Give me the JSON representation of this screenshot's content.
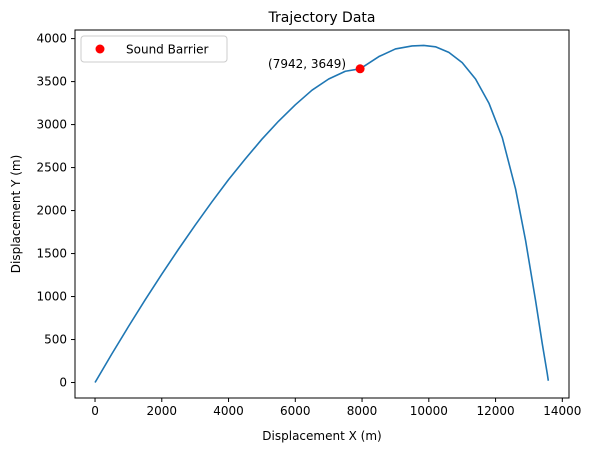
{
  "chart_data": {
    "type": "line",
    "title": "Trajectory Data",
    "xlabel": "Displacement X (m)",
    "ylabel": "Displacement Y (m)",
    "xlim": [
      -600,
      14200
    ],
    "ylim": [
      -180,
      4100
    ],
    "xticks": [
      0,
      2000,
      4000,
      6000,
      8000,
      10000,
      12000,
      14000
    ],
    "yticks": [
      0,
      500,
      1000,
      1500,
      2000,
      2500,
      3000,
      3500,
      4000
    ],
    "grid": false,
    "legend_position": "upper-left",
    "series": [
      {
        "color": "#1f77b4",
        "x": [
          0,
          500,
          1000,
          1500,
          2000,
          2500,
          3000,
          3500,
          4000,
          4500,
          5000,
          5500,
          6000,
          6500,
          7000,
          7500,
          7942,
          8500,
          9000,
          9500,
          9850,
          10200,
          10600,
          11000,
          11400,
          11800,
          12200,
          12600,
          12900,
          13200,
          13400,
          13550,
          13580
        ],
        "y": [
          0,
          330,
          650,
          960,
          1260,
          1550,
          1830,
          2100,
          2360,
          2600,
          2830,
          3040,
          3230,
          3400,
          3530,
          3620,
          3649,
          3790,
          3880,
          3915,
          3920,
          3905,
          3840,
          3720,
          3530,
          3250,
          2850,
          2250,
          1650,
          950,
          450,
          100,
          20
        ]
      }
    ],
    "points": [
      {
        "name": "Sound Barrier",
        "x": 7942,
        "y": 3649,
        "color": "#ff0000",
        "label": "(7942, 3649)"
      }
    ]
  }
}
